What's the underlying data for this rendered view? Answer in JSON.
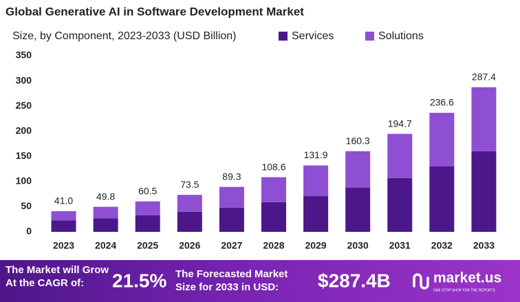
{
  "chart_data": {
    "type": "stacked-bar",
    "title": "Global Generative AI in Software Development Market",
    "subtitle": "Size, by Component, 2023-2033 (USD Billion)",
    "categories": [
      "2023",
      "2024",
      "2025",
      "2026",
      "2027",
      "2028",
      "2029",
      "2030",
      "2031",
      "2032",
      "2033"
    ],
    "series": [
      {
        "name": "Services",
        "color": "#4b1789",
        "values": [
          22.5,
          27,
          33,
          40,
          48,
          59,
          71,
          88,
          107,
          130,
          160
        ]
      },
      {
        "name": "Solutions",
        "color": "#8e4fd3",
        "values": [
          18.5,
          22.8,
          27.5,
          33.5,
          41.3,
          49.6,
          60.9,
          72.3,
          87.7,
          106.6,
          127.4
        ]
      }
    ],
    "totals": [
      41.0,
      49.8,
      60.5,
      73.5,
      89.3,
      108.6,
      131.9,
      160.3,
      194.7,
      236.6,
      287.4
    ],
    "total_labels": [
      "41.0",
      "49.8",
      "60.5",
      "73.5",
      "89.3",
      "108.6",
      "131.9",
      "160.3",
      "194.7",
      "236.6",
      "287.4"
    ],
    "ylim": [
      0,
      350
    ],
    "yticks": [
      0,
      50,
      100,
      150,
      200,
      250,
      300,
      350
    ],
    "grid": false,
    "legend": "top-right"
  },
  "footer": {
    "grow_text_1": "The Market will Grow",
    "grow_text_2": "At the CAGR of:",
    "cagr": "21.5%",
    "forecast_text_1": "The Forecasted Market",
    "forecast_text_2": "Size for 2033 in USD:",
    "forecast_value": "$287.4B",
    "brand": "market.us",
    "brand_tagline": "ONE STOP SHOP FOR THE REPORTS"
  }
}
